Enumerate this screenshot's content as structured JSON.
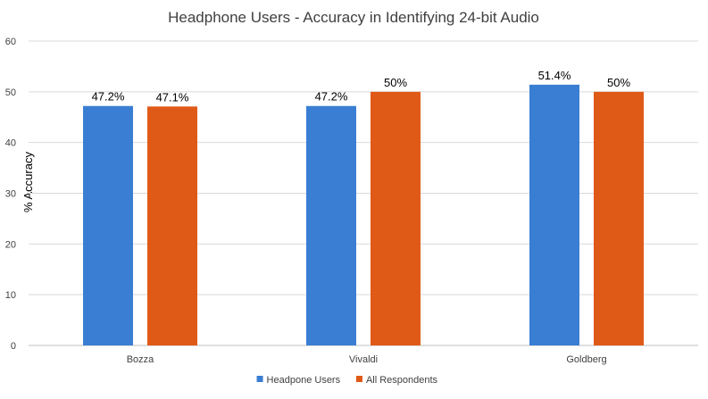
{
  "chart_data": {
    "type": "bar",
    "title": "Headphone Users - Accuracy in Identifying 24-bit Audio",
    "xlabel": "",
    "ylabel": "% Accuracy",
    "ylim": [
      0,
      60
    ],
    "yticks": [
      0,
      10,
      20,
      30,
      40,
      50,
      60
    ],
    "grid": true,
    "legend_position": "bottom",
    "categories": [
      "Bozza",
      "Vivaldi",
      "Goldberg"
    ],
    "series": [
      {
        "name": "Headpone Users",
        "color": "#3a7ed3",
        "values": [
          47.2,
          47.2,
          51.4
        ],
        "labels": [
          "47.2%",
          "47.2%",
          "51.4%"
        ]
      },
      {
        "name": "All Respondents",
        "color": "#e05a17",
        "values": [
          47.1,
          50,
          50
        ],
        "labels": [
          "47.1%",
          "50%",
          "50%"
        ]
      }
    ]
  }
}
